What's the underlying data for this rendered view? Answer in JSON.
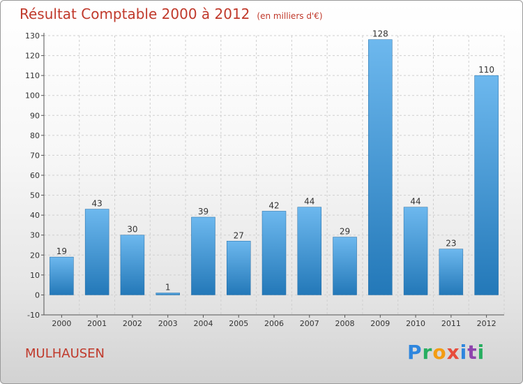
{
  "header": {
    "title": "Résultat Comptable 2000 à 2012",
    "unit": "(en milliers d'€)"
  },
  "footer": {
    "city": "MULHAUSEN",
    "brand_letters": [
      {
        "ch": "P",
        "color": "#2e86de"
      },
      {
        "ch": "r",
        "color": "#27ae60"
      },
      {
        "ch": "o",
        "color": "#f39c12"
      },
      {
        "ch": "x",
        "color": "#e74c3c"
      },
      {
        "ch": "i",
        "color": "#2e86de"
      },
      {
        "ch": "t",
        "color": "#8e44ad"
      },
      {
        "ch": "i",
        "color": "#27ae60"
      }
    ]
  },
  "colors": {
    "bar_light": "#6db8ee",
    "bar_dark": "#2378b8",
    "title": "#c0392b",
    "grid": "#cfcfcf"
  },
  "chart_data": {
    "type": "bar",
    "title": "Résultat Comptable 2000 à 2012",
    "xlabel": "",
    "ylabel": "",
    "categories": [
      "2000",
      "2001",
      "2002",
      "2003",
      "2004",
      "2005",
      "2006",
      "2007",
      "2008",
      "2009",
      "2010",
      "2011",
      "2012"
    ],
    "values": [
      19,
      43,
      30,
      1,
      39,
      27,
      42,
      44,
      29,
      128,
      44,
      23,
      110
    ],
    "value_labels": [
      "19",
      "43",
      "30",
      "1",
      "39",
      "27",
      "42",
      "44",
      "29",
      "128",
      "44",
      "23",
      "110"
    ],
    "ylim": [
      -10,
      130
    ],
    "yticks": [
      -10,
      0,
      10,
      20,
      30,
      40,
      50,
      60,
      70,
      80,
      90,
      100,
      110,
      120,
      130
    ],
    "ytick_labels": [
      "-10",
      "0",
      "10",
      "20",
      "30",
      "40",
      "50",
      "60",
      "70",
      "80",
      "90",
      "100",
      "110",
      "120",
      "130"
    ],
    "grid": true
  }
}
